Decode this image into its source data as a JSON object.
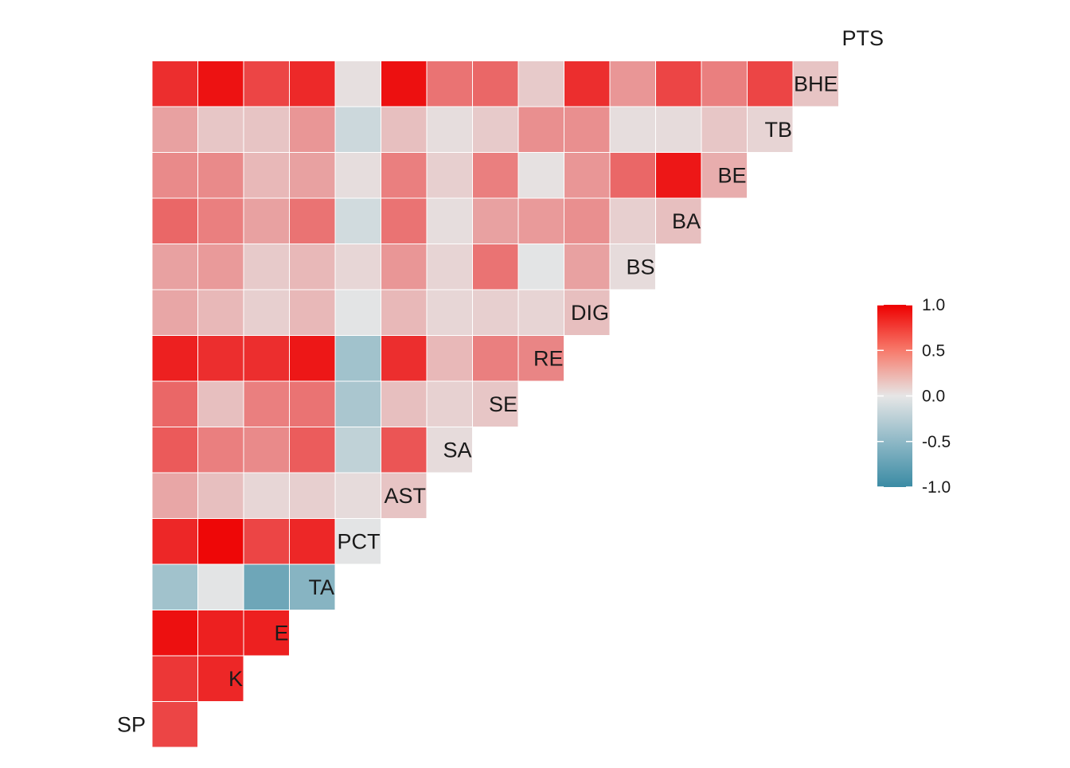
{
  "chart_data": {
    "type": "heatmap",
    "title": "",
    "variables": [
      "SP",
      "K",
      "E",
      "TA",
      "PCT",
      "AST",
      "SA",
      "SE",
      "RE",
      "DIG",
      "BS",
      "BA",
      "BE",
      "TB",
      "BHE",
      "PTS"
    ],
    "lower_triangle_rows": [
      {
        "row": "K",
        "values": [
          0.7
        ]
      },
      {
        "row": "E",
        "values": [
          0.76,
          0.83
        ]
      },
      {
        "row": "TA",
        "values": [
          0.93,
          0.86,
          0.86
        ]
      },
      {
        "row": "PCT",
        "values": [
          -0.4,
          -0.02,
          -0.7,
          -0.55
        ]
      },
      {
        "row": "AST",
        "values": [
          0.83,
          0.97,
          0.7,
          0.83,
          -0.02
        ]
      },
      {
        "row": "SA",
        "values": [
          0.28,
          0.17,
          0.07,
          0.1,
          0.05,
          0.15
        ]
      },
      {
        "row": "SE",
        "values": [
          0.61,
          0.45,
          0.4,
          0.6,
          -0.22,
          0.63,
          0.05
        ]
      },
      {
        "row": "RE",
        "values": [
          0.55,
          0.17,
          0.45,
          0.5,
          -0.35,
          0.17,
          0.09,
          0.14
        ]
      },
      {
        "row": "DIG",
        "values": [
          0.86,
          0.8,
          0.8,
          0.9,
          -0.4,
          0.8,
          0.2,
          0.45,
          0.42
        ]
      },
      {
        "row": "BS",
        "values": [
          0.28,
          0.2,
          0.1,
          0.2,
          -0.02,
          0.2,
          0.07,
          0.1,
          0.08,
          0.17
        ]
      },
      {
        "row": "BA",
        "values": [
          0.3,
          0.33,
          0.12,
          0.2,
          0.07,
          0.35,
          0.08,
          0.5,
          -0.02,
          0.3,
          0.05
        ]
      },
      {
        "row": "BE",
        "values": [
          0.55,
          0.45,
          0.3,
          0.5,
          -0.12,
          0.5,
          0.04,
          0.3,
          0.33,
          0.38,
          0.1,
          0.17
        ]
      },
      {
        "row": "TB",
        "values": [
          0.4,
          0.4,
          0.2,
          0.3,
          0.04,
          0.45,
          0.1,
          0.45,
          0.02,
          0.35,
          0.55,
          0.9,
          0.25
        ]
      },
      {
        "row": "BHE",
        "values": [
          0.3,
          0.14,
          0.15,
          0.35,
          -0.15,
          0.17,
          0.04,
          0.12,
          0.38,
          0.38,
          0.04,
          0.05,
          0.14,
          0.08
        ]
      },
      {
        "row": "PTS",
        "values": [
          0.8,
          0.92,
          0.7,
          0.82,
          0.03,
          0.93,
          0.5,
          0.55,
          0.12,
          0.8,
          0.35,
          0.7,
          0.45,
          0.7,
          0.15
        ]
      }
    ],
    "legend": {
      "ticks": [
        "1.0",
        "0.5",
        "0.0",
        "-0.5",
        "-1.0"
      ],
      "min": -1,
      "max": 1,
      "placement": "right"
    },
    "colors": {
      "low": "#3A8BA4",
      "mid": "#E6E6E6",
      "high": "#EE0000",
      "cell_border": "#ffffff"
    },
    "grid": false
  }
}
